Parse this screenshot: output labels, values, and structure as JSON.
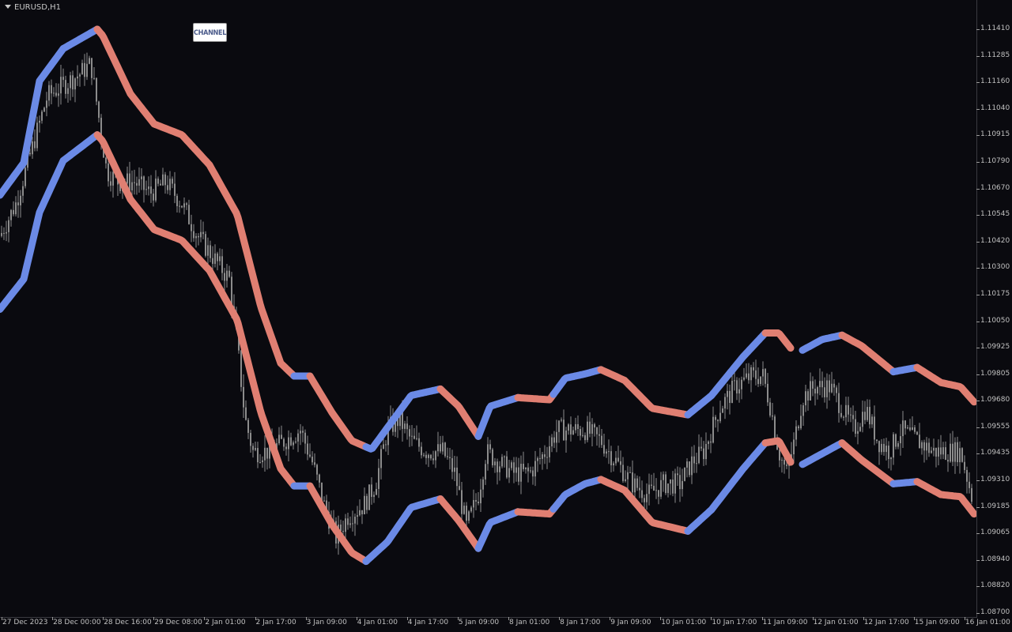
{
  "window": {
    "symbol_title": "EURUSD,H1"
  },
  "channel_button": {
    "label": "CHANNEL"
  },
  "colors": {
    "background": "#0a0a0f",
    "candles": "#8c8c8c",
    "channel_up": "#6b8ae6",
    "channel_down": "#e07f72"
  },
  "price_axis": {
    "labels": [
      "1.11410",
      "1.11285",
      "1.11160",
      "1.11040",
      "1.10915",
      "1.10790",
      "1.10670",
      "1.10545",
      "1.10420",
      "1.10300",
      "1.10175",
      "1.10050",
      "1.09925",
      "1.09805",
      "1.09680",
      "1.09555",
      "1.09435",
      "1.09310",
      "1.09185",
      "1.09065",
      "1.08940",
      "1.08820",
      "1.08700"
    ]
  },
  "time_axis": {
    "labels": [
      "27 Dec 2023",
      "28 Dec 00:00",
      "28 Dec 16:00",
      "29 Dec 08:00",
      "2 Jan 01:00",
      "2 Jan 17:00",
      "3 Jan 09:00",
      "4 Jan 01:00",
      "4 Jan 17:00",
      "5 Jan 09:00",
      "8 Jan 01:00",
      "8 Jan 17:00",
      "9 Jan 09:00",
      "10 Jan 01:00",
      "10 Jan 17:00",
      "11 Jan 09:00",
      "12 Jan 01:00",
      "12 Jan 17:00",
      "15 Jan 09:00",
      "16 Jan 01:00"
    ]
  },
  "chart_data": {
    "type": "candlestick_channel",
    "symbol": "EURUSD",
    "timeframe": "H1",
    "ylim": [
      1.087,
      1.1141
    ],
    "upper_band": [
      [
        0,
        1.1064
      ],
      [
        30,
        1.1079
      ],
      [
        50,
        1.1117
      ],
      [
        80,
        1.1132
      ],
      [
        123,
        1.1141
      ],
      [
        130,
        1.1138
      ],
      [
        165,
        1.1111
      ],
      [
        195,
        1.1097
      ],
      [
        230,
        1.1092
      ],
      [
        265,
        1.1078
      ],
      [
        300,
        1.1055
      ],
      [
        330,
        1.1012
      ],
      [
        355,
        1.0986
      ],
      [
        372,
        1.098
      ],
      [
        392,
        1.098
      ],
      [
        420,
        1.0963
      ],
      [
        445,
        1.095
      ],
      [
        470,
        1.0946
      ],
      [
        490,
        1.0956
      ],
      [
        520,
        1.0971
      ],
      [
        557,
        1.0974
      ],
      [
        580,
        1.0966
      ],
      [
        605,
        1.0952
      ],
      [
        620,
        1.0966
      ],
      [
        655,
        1.097
      ],
      [
        695,
        1.0969
      ],
      [
        715,
        1.0979
      ],
      [
        740,
        1.0981
      ],
      [
        760,
        1.0983
      ],
      [
        790,
        1.0978
      ],
      [
        825,
        1.0965
      ],
      [
        870,
        1.0962
      ],
      [
        900,
        1.0971
      ],
      [
        940,
        1.0989
      ],
      [
        968,
        1.1
      ],
      [
        985,
        1.1
      ],
      [
        1000,
        1.0993
      ],
      [
        1015,
        1.0992
      ],
      [
        1040,
        1.0997
      ],
      [
        1065,
        1.0999
      ],
      [
        1090,
        1.0994
      ],
      [
        1130,
        1.0982
      ],
      [
        1160,
        1.0984
      ],
      [
        1190,
        1.0977
      ],
      [
        1215,
        1.0975
      ],
      [
        1232,
        1.0968
      ]
    ],
    "lower_band": [
      [
        0,
        1.1011
      ],
      [
        30,
        1.1025
      ],
      [
        50,
        1.1056
      ],
      [
        80,
        1.108
      ],
      [
        123,
        1.1092
      ],
      [
        130,
        1.1089
      ],
      [
        165,
        1.1062
      ],
      [
        195,
        1.1048
      ],
      [
        230,
        1.1043
      ],
      [
        265,
        1.1029
      ],
      [
        300,
        1.1006
      ],
      [
        330,
        1.0963
      ],
      [
        355,
        1.0937
      ],
      [
        372,
        1.0929
      ],
      [
        392,
        1.0929
      ],
      [
        420,
        1.0911
      ],
      [
        445,
        1.0898
      ],
      [
        463,
        1.0894
      ],
      [
        490,
        1.0903
      ],
      [
        520,
        1.0919
      ],
      [
        557,
        1.0923
      ],
      [
        580,
        1.0913
      ],
      [
        605,
        1.09
      ],
      [
        620,
        1.0912
      ],
      [
        655,
        1.0917
      ],
      [
        695,
        1.0916
      ],
      [
        715,
        1.0925
      ],
      [
        740,
        1.093
      ],
      [
        760,
        1.0932
      ],
      [
        790,
        1.0927
      ],
      [
        825,
        1.0912
      ],
      [
        870,
        1.0908
      ],
      [
        900,
        1.0918
      ],
      [
        940,
        1.0937
      ],
      [
        968,
        1.0949
      ],
      [
        985,
        1.095
      ],
      [
        1000,
        1.094
      ],
      [
        1015,
        1.0939
      ],
      [
        1040,
        1.0944
      ],
      [
        1065,
        1.0949
      ],
      [
        1090,
        1.0941
      ],
      [
        1130,
        1.093
      ],
      [
        1160,
        1.0931
      ],
      [
        1190,
        1.0925
      ],
      [
        1215,
        1.0924
      ],
      [
        1232,
        1.0916
      ]
    ],
    "color_segments": [
      {
        "from": 0,
        "to": 123,
        "trend": "up"
      },
      {
        "from": 123,
        "to": 372,
        "trend": "down"
      },
      {
        "from": 372,
        "to": 392,
        "trend": "up"
      },
      {
        "from": 392,
        "to": 463,
        "trend": "down"
      },
      {
        "from": 463,
        "to": 557,
        "trend": "up"
      },
      {
        "from": 557,
        "to": 605,
        "trend": "down"
      },
      {
        "from": 605,
        "to": 655,
        "trend": "up"
      },
      {
        "from": 655,
        "to": 700,
        "trend": "down"
      },
      {
        "from": 700,
        "to": 760,
        "trend": "up"
      },
      {
        "from": 760,
        "to": 870,
        "trend": "down"
      },
      {
        "from": 870,
        "to": 968,
        "trend": "up"
      },
      {
        "from": 968,
        "to": 1000,
        "trend": "down"
      },
      {
        "from": 1015,
        "to": 1065,
        "trend": "up"
      },
      {
        "from": 1065,
        "to": 1130,
        "trend": "down"
      },
      {
        "from": 1130,
        "to": 1160,
        "trend": "up"
      },
      {
        "from": 1160,
        "to": 1232,
        "trend": "down"
      }
    ],
    "price_path": [
      [
        0,
        1.1045
      ],
      [
        20,
        1.106
      ],
      [
        40,
        1.1085
      ],
      [
        60,
        1.111
      ],
      [
        80,
        1.1115
      ],
      [
        100,
        1.112
      ],
      [
        115,
        1.1125
      ],
      [
        125,
        1.11
      ],
      [
        135,
        1.1075
      ],
      [
        150,
        1.107
      ],
      [
        170,
        1.107
      ],
      [
        190,
        1.1065
      ],
      [
        210,
        1.107
      ],
      [
        230,
        1.106
      ],
      [
        250,
        1.1045
      ],
      [
        270,
        1.1035
      ],
      [
        290,
        1.1025
      ],
      [
        300,
        1.0995
      ],
      [
        310,
        1.096
      ],
      [
        320,
        1.0945
      ],
      [
        340,
        1.0945
      ],
      [
        360,
        1.095
      ],
      [
        380,
        1.0955
      ],
      [
        395,
        1.094
      ],
      [
        410,
        1.092
      ],
      [
        425,
        1.0905
      ],
      [
        440,
        1.0915
      ],
      [
        460,
        1.092
      ],
      [
        475,
        1.093
      ],
      [
        490,
        1.0955
      ],
      [
        505,
        1.096
      ],
      [
        520,
        1.095
      ],
      [
        540,
        1.0945
      ],
      [
        560,
        1.0945
      ],
      [
        575,
        1.0935
      ],
      [
        590,
        1.091
      ],
      [
        605,
        1.0925
      ],
      [
        615,
        1.0945
      ],
      [
        630,
        1.094
      ],
      [
        650,
        1.0935
      ],
      [
        670,
        1.0935
      ],
      [
        690,
        1.0945
      ],
      [
        705,
        1.0955
      ],
      [
        720,
        1.0955
      ],
      [
        740,
        1.0955
      ],
      [
        760,
        1.095
      ],
      [
        780,
        1.094
      ],
      [
        800,
        1.093
      ],
      [
        820,
        1.0925
      ],
      [
        840,
        1.093
      ],
      [
        860,
        1.093
      ],
      [
        875,
        1.094
      ],
      [
        890,
        1.0945
      ],
      [
        910,
        1.0965
      ],
      [
        930,
        1.0975
      ],
      [
        950,
        1.098
      ],
      [
        965,
        1.098
      ],
      [
        975,
        1.0965
      ],
      [
        985,
        1.0945
      ],
      [
        995,
        1.0935
      ],
      [
        1005,
        1.095
      ],
      [
        1015,
        1.097
      ],
      [
        1030,
        1.0975
      ],
      [
        1050,
        1.0975
      ],
      [
        1065,
        1.0965
      ],
      [
        1080,
        1.0955
      ],
      [
        1095,
        1.0965
      ],
      [
        1110,
        1.095
      ],
      [
        1125,
        1.0945
      ],
      [
        1140,
        1.0955
      ],
      [
        1160,
        1.095
      ],
      [
        1180,
        1.0945
      ],
      [
        1200,
        1.0945
      ],
      [
        1215,
        1.0945
      ],
      [
        1232,
        1.092
      ]
    ]
  }
}
